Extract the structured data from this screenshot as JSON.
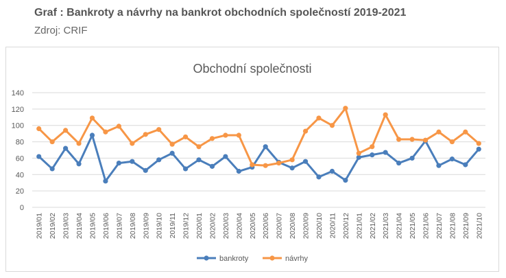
{
  "header": {
    "title_prefix": "Graf",
    "title_text": ": Bankroty a návrhy na bankrot obchodních společností 2019-2021",
    "source": "Zdroj: CRIF"
  },
  "chart_data": {
    "type": "line",
    "title": "Obchodní společnosti",
    "xlabel": "",
    "ylabel": "",
    "ylim": [
      0,
      140
    ],
    "yticks": [
      0,
      20,
      40,
      60,
      80,
      100,
      120,
      140
    ],
    "grid": "horizontal",
    "legend_position": "bottom",
    "categories": [
      "2019/01",
      "2019/02",
      "2019/03",
      "2019/04",
      "2019/05",
      "2019/06",
      "2019/07",
      "2019/08",
      "2019/09",
      "2019/10",
      "2019/11",
      "2019/12",
      "2020/01",
      "2020/02",
      "2020/03",
      "2020/04",
      "2020/05",
      "2020/06",
      "2020/07",
      "2020/08",
      "2020/09",
      "2020/10",
      "2020/11",
      "2020/12",
      "2021/01",
      "2021/02",
      "2021/03",
      "2021/04",
      "2021/05",
      "2021/06",
      "2021/07",
      "2021/08",
      "2021/09",
      "2021/10"
    ],
    "series": [
      {
        "name": "bankroty",
        "color": "#4a7ebb",
        "values": [
          62,
          47,
          72,
          53,
          88,
          32,
          54,
          56,
          45,
          58,
          66,
          47,
          58,
          50,
          62,
          44,
          49,
          74,
          55,
          48,
          56,
          37,
          44,
          33,
          61,
          64,
          67,
          54,
          60,
          81,
          51,
          59,
          52,
          71
        ]
      },
      {
        "name": "návrhy",
        "color": "#f79646",
        "values": [
          96,
          80,
          94,
          78,
          109,
          92,
          99,
          78,
          89,
          95,
          77,
          86,
          74,
          84,
          88,
          88,
          52,
          51,
          54,
          58,
          93,
          109,
          100,
          121,
          66,
          74,
          113,
          83,
          83,
          82,
          92,
          80,
          92,
          78
        ]
      }
    ]
  }
}
